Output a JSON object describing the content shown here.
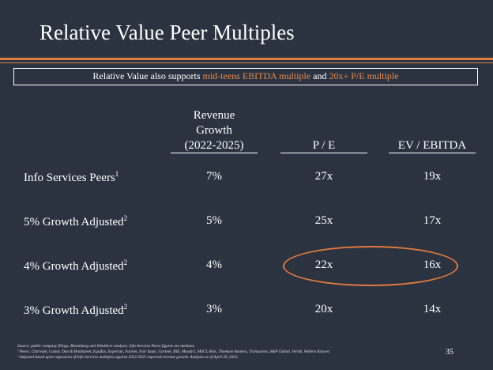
{
  "slide": {
    "title": "Relative Value Peer Multiples",
    "callout": {
      "prefix": "Relative Value also supports ",
      "highlight1": "mid-teens EBITDA multiple",
      "middle": " and ",
      "highlight2": "20x+ P/E multiple"
    },
    "columns": {
      "revenue_growth": [
        "Revenue",
        "Growth",
        "(2022-2025)"
      ],
      "pe": "P / E",
      "ev_ebitda": "EV / EBITDA"
    },
    "rows": [
      {
        "label": "Info Services Peers",
        "sup": "1",
        "revenue_growth": "7%",
        "pe": "27x",
        "ev_ebitda": "19x"
      },
      {
        "label": "5% Growth Adjusted",
        "sup": "2",
        "revenue_growth": "5%",
        "pe": "25x",
        "ev_ebitda": "17x"
      },
      {
        "label": "4% Growth Adjusted",
        "sup": "2",
        "revenue_growth": "4%",
        "pe": "22x",
        "ev_ebitda": "16x"
      },
      {
        "label": "3% Growth Adjusted",
        "sup": "2",
        "revenue_growth": "3%",
        "pe": "20x",
        "ev_ebitda": "14x"
      }
    ],
    "footnotes": [
      "Source: public company filings, Bloomberg and WindAcre analysis. Info Services Peers figures are medians.",
      "¹ Peers: Clarivate, Costar, Dun & Bradstreet, Equifax, Experian, Factset, Fair Isaac, Gartner, IHS, Moody's, MSCI, Relx, Thomson Reuters, Transunion, S&P Global, Verisk, Wolters Kluwer.",
      "² Adjusted based upon regression of Info Services multiples against 2022-2025 expected revenue growth.  Analysis as of April 20, 2022."
    ],
    "page_number": "35",
    "colors": {
      "background": "#2b3340",
      "accent": "#e08040",
      "text": "#ffffff"
    }
  }
}
